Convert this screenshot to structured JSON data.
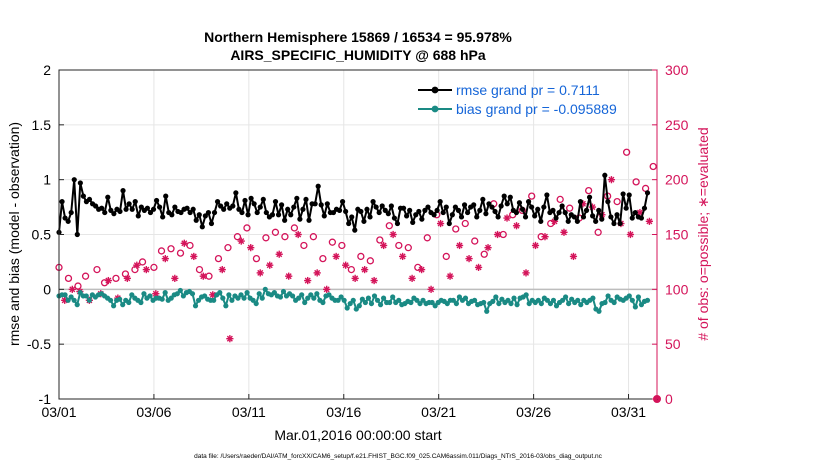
{
  "chart_data": {
    "type": "line",
    "title": [
      "Northern Hemisphere 15869 / 16534 = 95.978%",
      "AIRS_SPECIFIC_HUMIDITY @ 688 hPa"
    ],
    "xlabel": "Mar.01,2016 00:00:00 start",
    "ylabel_left": "rmse and bias (model - observation)",
    "ylabel_right": "# of obs: o=possible; ∗=evaluated",
    "x_tick_labels": [
      "03/01",
      "03/06",
      "03/11",
      "03/16",
      "03/21",
      "03/26",
      "03/31"
    ],
    "x_tick_days": [
      0,
      5,
      10,
      15,
      20,
      25,
      30
    ],
    "xlim": [
      0,
      31.5
    ],
    "ylim_left": [
      -1,
      2
    ],
    "ylim_right": [
      0,
      300
    ],
    "y_left_ticks": [
      "-1",
      "-0.5",
      "0",
      "0.5",
      "1",
      "1.5",
      "2"
    ],
    "y_right_ticks": [
      "0",
      "50",
      "100",
      "150",
      "200",
      "250",
      "300"
    ],
    "zero_line": 0,
    "colors": {
      "rmse": "#000000",
      "bias": "#1a8a84",
      "obs": "#d4145a",
      "legend_text": "#1565d8",
      "grid": "#e6e6e6",
      "zero": "#bdbdbd"
    },
    "legend": [
      {
        "name": "rmse",
        "label": "rmse grand pr = 0.7111"
      },
      {
        "name": "bias",
        "label": "bias grand pr = -0.095889"
      }
    ],
    "series": [
      {
        "name": "rmse",
        "axis": "left",
        "values": [
          0.52,
          0.8,
          0.65,
          0.62,
          0.7,
          1.0,
          0.5,
          0.97,
          0.85,
          0.8,
          0.82,
          0.78,
          0.76,
          0.73,
          0.74,
          0.7,
          0.84,
          0.72,
          0.69,
          0.73,
          0.71,
          0.9,
          0.73,
          0.78,
          0.73,
          0.8,
          0.67,
          0.75,
          0.72,
          0.74,
          0.7,
          0.73,
          0.81,
          0.75,
          0.66,
          0.85,
          0.7,
          0.68,
          0.75,
          0.71,
          0.7,
          0.73,
          0.74,
          0.7,
          0.73,
          0.63,
          0.68,
          0.57,
          0.67,
          0.7,
          0.6,
          0.7,
          0.8,
          0.76,
          0.73,
          0.78,
          0.74,
          0.76,
          0.88,
          0.73,
          0.7,
          0.81,
          0.68,
          0.83,
          0.78,
          0.7,
          0.75,
          0.82,
          0.7,
          0.66,
          0.68,
          0.8,
          0.68,
          0.77,
          0.63,
          0.73,
          0.68,
          0.75,
          0.83,
          0.64,
          0.73,
          0.82,
          0.63,
          0.78,
          0.78,
          0.94,
          0.77,
          0.67,
          0.78,
          0.7,
          0.7,
          0.73,
          0.72,
          0.8,
          0.71,
          0.6,
          0.66,
          0.54,
          0.73,
          0.71,
          0.62,
          0.73,
          0.66,
          0.8,
          0.75,
          0.7,
          0.76,
          0.72,
          0.69,
          0.76,
          0.65,
          0.6,
          0.74,
          0.74,
          0.67,
          0.72,
          0.61,
          0.68,
          0.71,
          0.64,
          0.72,
          0.75,
          0.7,
          0.68,
          0.72,
          0.8,
          0.7,
          0.75,
          0.6,
          0.68,
          0.75,
          0.72,
          0.66,
          0.77,
          0.7,
          0.75,
          0.77,
          0.66,
          0.72,
          0.82,
          0.69,
          0.78,
          0.75,
          0.71,
          0.66,
          0.76,
          0.85,
          0.78,
          0.84,
          0.72,
          0.7,
          0.79,
          0.73,
          0.66,
          0.8,
          0.75,
          0.67,
          0.73,
          0.62,
          0.75,
          0.86,
          0.7,
          0.72,
          0.65,
          0.7,
          0.76,
          0.7,
          0.62,
          0.68,
          0.66,
          0.62,
          0.8,
          0.66,
          0.72,
          0.84,
          0.67,
          0.62,
          0.72,
          0.64,
          1.04,
          0.8,
          0.66,
          0.6,
          0.68,
          0.6,
          0.87,
          0.74,
          0.86,
          0.65,
          0.7,
          0.66,
          0.65,
          0.74,
          0.88
        ]
      },
      {
        "name": "bias",
        "axis": "left",
        "values": [
          -0.06,
          -0.05,
          -0.05,
          -0.1,
          -0.07,
          -0.1,
          -0.14,
          -0.03,
          -0.06,
          -0.06,
          -0.1,
          -0.05,
          -0.07,
          -0.05,
          -0.04,
          -0.06,
          -0.08,
          -0.1,
          -0.15,
          -0.1,
          -0.09,
          -0.14,
          -0.1,
          -0.12,
          -0.05,
          -0.08,
          -0.1,
          -0.12,
          -0.04,
          -0.08,
          -0.06,
          -0.1,
          -0.08,
          -0.08,
          -0.09,
          -0.03,
          -0.1,
          -0.08,
          -0.05,
          -0.04,
          -0.01,
          -0.06,
          -0.03,
          -0.02,
          -0.04,
          -0.15,
          -0.1,
          -0.07,
          -0.06,
          -0.09,
          -0.1,
          -0.1,
          -0.05,
          -0.03,
          -0.08,
          -0.15,
          -0.05,
          -0.1,
          -0.06,
          -0.08,
          -0.05,
          -0.08,
          -0.03,
          -0.08,
          -0.1,
          -0.13,
          -0.04,
          -0.08,
          0.0,
          -0.04,
          -0.05,
          -0.03,
          -0.06,
          -0.07,
          -0.02,
          -0.06,
          -0.04,
          -0.06,
          -0.1,
          -0.08,
          -0.05,
          -0.12,
          -0.08,
          -0.05,
          -0.08,
          -0.04,
          -0.1,
          -0.12,
          -0.06,
          -0.05,
          -0.08,
          -0.1,
          -0.1,
          -0.07,
          -0.1,
          -0.17,
          -0.13,
          -0.1,
          -0.18,
          -0.15,
          -0.09,
          -0.12,
          -0.08,
          -0.13,
          -0.06,
          -0.1,
          -0.14,
          -0.08,
          -0.12,
          -0.12,
          -0.07,
          -0.12,
          -0.1,
          -0.14,
          -0.13,
          -0.11,
          -0.12,
          -0.08,
          -0.1,
          -0.13,
          -0.1,
          -0.13,
          -0.12,
          -0.12,
          -0.15,
          -0.12,
          -0.1,
          -0.11,
          -0.13,
          -0.1,
          -0.1,
          -0.13,
          -0.07,
          -0.1,
          -0.08,
          -0.13,
          -0.11,
          -0.1,
          -0.14,
          -0.13,
          -0.12,
          -0.2,
          -0.13,
          -0.11,
          -0.07,
          -0.13,
          -0.09,
          -0.12,
          -0.1,
          -0.13,
          -0.08,
          -0.14,
          -0.08,
          -0.07,
          -0.05,
          -0.13,
          -0.1,
          -0.12,
          -0.1,
          -0.13,
          -0.08,
          -0.1,
          -0.13,
          -0.1,
          -0.15,
          -0.12,
          -0.1,
          -0.07,
          -0.13,
          -0.09,
          -0.12,
          -0.1,
          -0.14,
          -0.1,
          -0.12,
          -0.1,
          -0.08,
          -0.18,
          -0.2,
          -0.13,
          -0.12,
          -0.06,
          -0.1,
          -0.12,
          -0.07,
          -0.09,
          -0.1,
          -0.08,
          -0.06,
          -0.1,
          -0.16,
          -0.07,
          -0.14,
          -0.11,
          -0.1
        ]
      }
    ],
    "obs_possible": {
      "axis": "right",
      "marker": "o",
      "x": [
        0.0,
        0.5,
        1.0,
        1.4,
        2.0,
        2.4,
        3.0,
        3.5,
        4.0,
        4.4,
        5.0,
        5.4,
        5.9,
        6.4,
        6.9,
        7.4,
        7.9,
        8.4,
        8.9,
        9.4,
        9.9,
        10.4,
        10.9,
        11.4,
        11.9,
        12.4,
        12.9,
        13.4,
        13.9,
        14.4,
        14.9,
        15.4,
        15.9,
        16.4,
        16.9,
        17.4,
        17.9,
        18.4,
        18.9,
        19.4,
        19.9,
        20.4,
        20.9,
        21.4,
        21.9,
        22.4,
        22.9,
        23.4,
        23.9,
        24.4,
        24.9,
        25.4,
        25.9,
        26.4,
        26.9,
        27.4,
        27.9,
        28.4,
        28.9,
        29.4,
        29.9,
        30.4,
        30.9,
        31.3
      ],
      "y": [
        120,
        110,
        103,
        112,
        118,
        106,
        110,
        114,
        118,
        125,
        120,
        135,
        137,
        133,
        140,
        118,
        112,
        128,
        138,
        148,
        156,
        128,
        147,
        152,
        148,
        156,
        140,
        148,
        128,
        143,
        140,
        118,
        130,
        126,
        145,
        158,
        140,
        138,
        120,
        147,
        168,
        130,
        155,
        160,
        144,
        132,
        178,
        150,
        168,
        172,
        185,
        148,
        160,
        182,
        174,
        165,
        190,
        152,
        185,
        180,
        225,
        198,
        192,
        212
      ]
    },
    "obs_evaluated": {
      "axis": "right",
      "marker": "*",
      "x": [
        0.3,
        0.7,
        1.1,
        1.6,
        2.2,
        2.6,
        3.1,
        3.6,
        4.1,
        4.6,
        5.1,
        5.6,
        6.1,
        6.6,
        7.1,
        7.6,
        8.1,
        8.6,
        9.0,
        9.6,
        10.1,
        10.6,
        11.1,
        11.6,
        12.1,
        12.6,
        13.1,
        13.6,
        14.1,
        14.6,
        15.1,
        15.6,
        16.1,
        16.6,
        17.1,
        17.6,
        18.1,
        18.6,
        19.1,
        19.6,
        20.1,
        20.6,
        21.1,
        21.6,
        22.1,
        22.6,
        23.1,
        23.6,
        24.1,
        24.6,
        25.1,
        25.6,
        26.1,
        26.6,
        27.1,
        27.6,
        28.1,
        28.6,
        29.1,
        29.6,
        30.1,
        30.6,
        31.1
      ],
      "y": [
        90,
        100,
        98,
        90,
        96,
        108,
        92,
        110,
        122,
        118,
        96,
        128,
        110,
        142,
        130,
        112,
        95,
        118,
        55,
        144,
        138,
        115,
        122,
        132,
        112,
        150,
        108,
        115,
        100,
        130,
        122,
        110,
        118,
        108,
        140,
        150,
        130,
        110,
        118,
        100,
        160,
        112,
        140,
        128,
        120,
        138,
        150,
        165,
        158,
        115,
        140,
        148,
        162,
        152,
        130,
        178,
        175,
        168,
        200,
        160,
        150,
        170,
        162
      ]
    }
  },
  "footer": "data file: /Users/raeder/DAI/ATM_forcXX/CAM6_setup/f.e21.FHIST_BGC.f09_025.CAM6assim.011/Diags_NTrS_2016-03/obs_diag_output.nc"
}
